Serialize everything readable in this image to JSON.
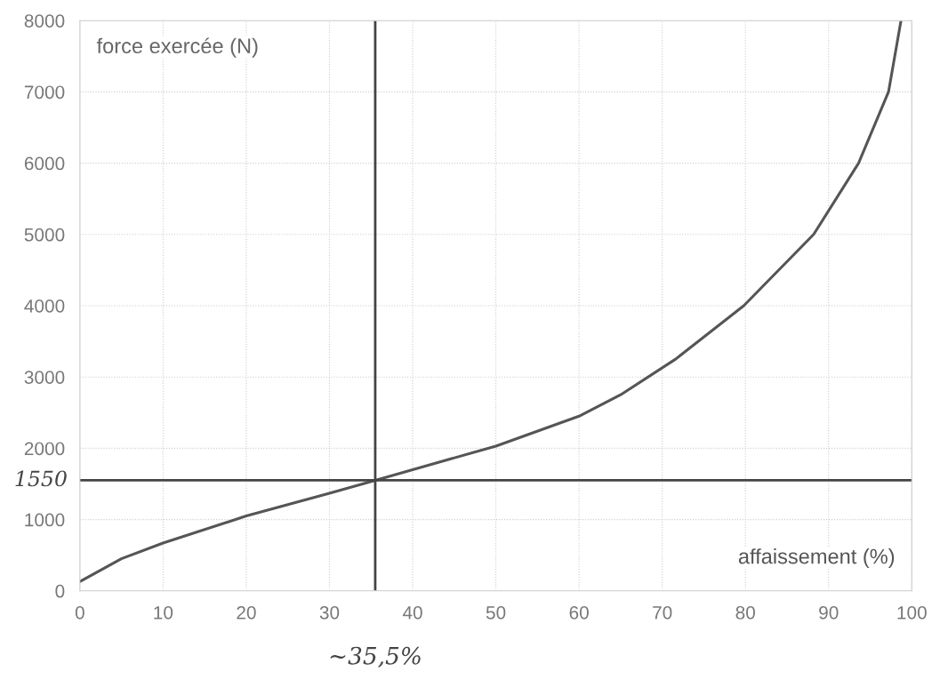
{
  "chart_data": {
    "type": "line",
    "xlabel": "affaissement (%)",
    "ylabel": "force exercée (N)",
    "series": [
      {
        "color": "#555555",
        "x": [
          0,
          5,
          10,
          20,
          30,
          35.5,
          40,
          50,
          60,
          65,
          71.6,
          79.8,
          88.2,
          93.6,
          97.2,
          98.7
        ],
        "values": [
          130,
          450,
          670,
          1050,
          1370,
          1550,
          1700,
          2030,
          2450,
          2750,
          3250,
          4000,
          5000,
          6000,
          7000,
          8000
        ]
      }
    ],
    "xlim": [
      0,
      100
    ],
    "xticks": [
      0,
      10,
      20,
      30,
      40,
      50,
      60,
      70,
      80,
      90,
      100
    ],
    "ylim": [
      0,
      8000
    ],
    "yticks": [
      0,
      1000,
      2000,
      3000,
      4000,
      5000,
      6000,
      7000,
      8000
    ],
    "ref_lines": [
      {
        "axis": "y",
        "value": 1550,
        "label": "1550",
        "color": "#444444"
      },
      {
        "axis": "x",
        "value": 35.5,
        "label": "~35,5%",
        "color": "#444444"
      }
    ],
    "grid": true,
    "marker": "none",
    "line_style": "solid"
  }
}
